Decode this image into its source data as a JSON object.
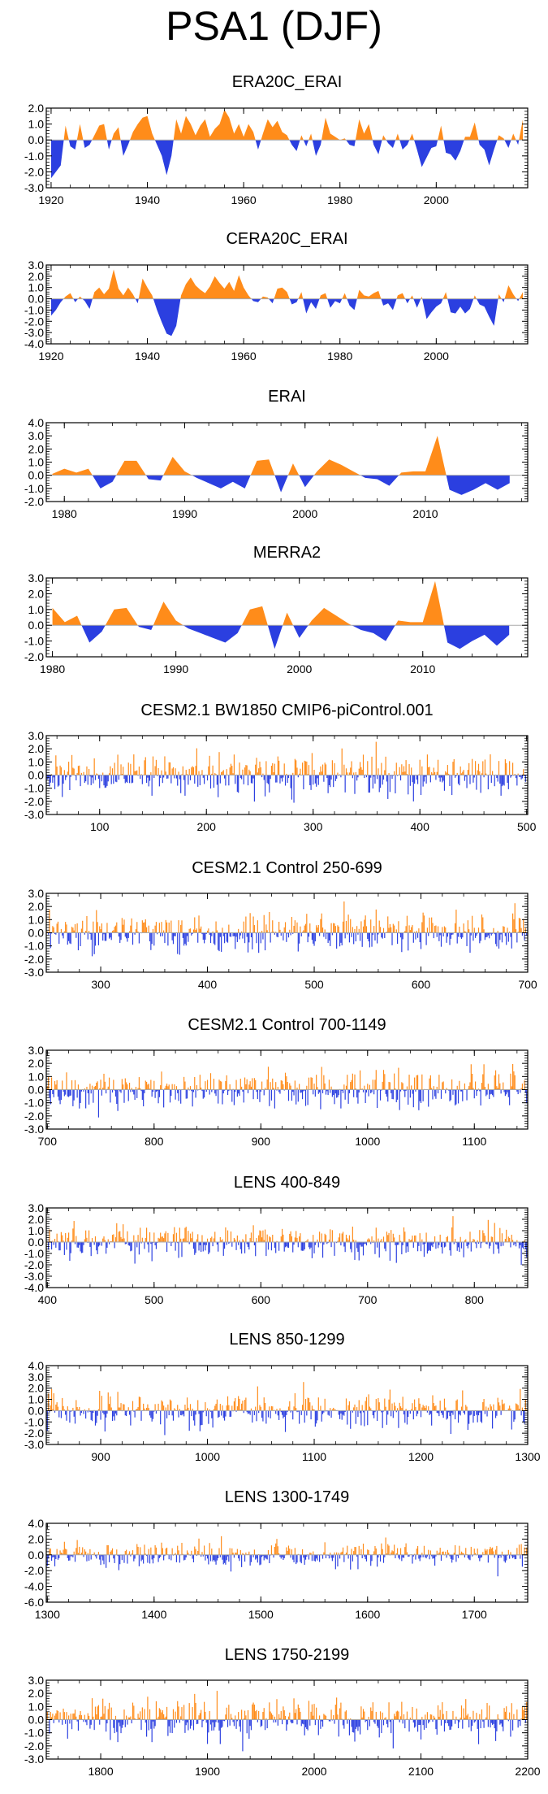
{
  "title": "PSA1 (DJF)",
  "colors": {
    "positive": "#FF8C1A",
    "negative": "#2B3FE0",
    "frame": "#000000",
    "zero": "#AAAAAA"
  },
  "chart_data": [
    {
      "type": "area",
      "title": "ERA20C_ERAI",
      "xlim": [
        1919,
        2019
      ],
      "ylim": [
        -3.0,
        2.0
      ],
      "yticks": [
        "2.0",
        "1.0",
        "0.0",
        "-1.0",
        "-2.0",
        "-3.0"
      ],
      "xticks": [
        "1920",
        "1940",
        "1960",
        "1980",
        "2000"
      ],
      "x": [
        1920,
        1921,
        1922,
        1923,
        1924,
        1925,
        1926,
        1927,
        1928,
        1929,
        1930,
        1931,
        1932,
        1933,
        1934,
        1935,
        1936,
        1937,
        1938,
        1939,
        1940,
        1941,
        1942,
        1943,
        1944,
        1945,
        1946,
        1947,
        1948,
        1949,
        1950,
        1951,
        1952,
        1953,
        1954,
        1955,
        1956,
        1957,
        1958,
        1959,
        1960,
        1961,
        1962,
        1963,
        1964,
        1965,
        1966,
        1967,
        1968,
        1969,
        1970,
        1971,
        1972,
        1973,
        1974,
        1975,
        1976,
        1977,
        1978,
        1979,
        1980,
        1981,
        1982,
        1983,
        1984,
        1985,
        1986,
        1987,
        1988,
        1989,
        1990,
        1991,
        1992,
        1993,
        1994,
        1995,
        1996,
        1997,
        1998,
        1999,
        2000,
        2001,
        2002,
        2003,
        2004,
        2005,
        2006,
        2007,
        2008,
        2009,
        2010,
        2011,
        2012,
        2013,
        2014,
        2015,
        2016,
        2017,
        2018
      ],
      "values": [
        -2.4,
        -2.0,
        -1.6,
        0.9,
        -0.4,
        -0.6,
        1.0,
        -0.5,
        -0.3,
        0.3,
        0.9,
        1.0,
        -0.6,
        0.4,
        0.8,
        -1.0,
        -0.3,
        0.5,
        1.0,
        1.4,
        1.5,
        0.4,
        -0.3,
        -1.0,
        -2.2,
        -1.0,
        1.3,
        0.4,
        1.5,
        1.0,
        0.3,
        0.9,
        1.3,
        0.2,
        0.7,
        1.0,
        1.9,
        1.4,
        0.4,
        1.0,
        0.2,
        1.0,
        0.5,
        -0.6,
        0.4,
        1.3,
        0.8,
        1.2,
        0.5,
        0.3,
        -0.3,
        -0.7,
        0.3,
        -0.4,
        0.4,
        -1.0,
        -0.3,
        1.4,
        0.4,
        0.2,
        0.0,
        0.1,
        -0.3,
        -0.4,
        1.3,
        0.4,
        1.0,
        -0.3,
        -0.9,
        0.3,
        -0.2,
        -0.5,
        0.4,
        -0.6,
        -0.3,
        0.4,
        -0.6,
        -1.7,
        -1.1,
        -0.5,
        -0.4,
        0.9,
        -0.8,
        -0.9,
        -1.3,
        -0.7,
        0.2,
        0.2,
        1.1,
        -0.3,
        -0.6,
        -1.6,
        -0.6,
        0.3,
        0.1,
        -0.5,
        0.4,
        -0.3,
        1.3
      ]
    },
    {
      "type": "area",
      "title": "CERA20C_ERAI",
      "xlim": [
        1919,
        2019
      ],
      "ylim": [
        -4.0,
        3.0
      ],
      "yticks": [
        "3.0",
        "2.0",
        "1.0",
        "0.0",
        "-1.0",
        "-2.0",
        "-3.0",
        "-4.0"
      ],
      "xticks": [
        "1920",
        "1940",
        "1960",
        "1980",
        "2000"
      ],
      "x": [
        1920,
        1921,
        1922,
        1923,
        1924,
        1925,
        1926,
        1927,
        1928,
        1929,
        1930,
        1931,
        1932,
        1933,
        1934,
        1935,
        1936,
        1937,
        1938,
        1939,
        1940,
        1941,
        1942,
        1943,
        1944,
        1945,
        1946,
        1947,
        1948,
        1949,
        1950,
        1951,
        1952,
        1953,
        1954,
        1955,
        1956,
        1957,
        1958,
        1959,
        1960,
        1961,
        1962,
        1963,
        1964,
        1965,
        1966,
        1967,
        1968,
        1969,
        1970,
        1971,
        1972,
        1973,
        1974,
        1975,
        1976,
        1977,
        1978,
        1979,
        1980,
        1981,
        1982,
        1983,
        1984,
        1985,
        1986,
        1987,
        1988,
        1989,
        1990,
        1991,
        1992,
        1993,
        1994,
        1995,
        1996,
        1997,
        1998,
        1999,
        2000,
        2001,
        2002,
        2003,
        2004,
        2005,
        2006,
        2007,
        2008,
        2009,
        2010,
        2011,
        2012,
        2013,
        2014,
        2015,
        2016,
        2017,
        2018
      ],
      "values": [
        -1.5,
        -1.0,
        -0.3,
        0.2,
        0.5,
        -0.3,
        0.2,
        -0.2,
        -0.9,
        0.6,
        1.0,
        0.4,
        0.9,
        2.6,
        0.9,
        0.3,
        1.0,
        0.4,
        -0.4,
        1.8,
        1.0,
        0.3,
        -1.0,
        -2.1,
        -3.1,
        -3.3,
        -2.4,
        0.3,
        1.3,
        1.9,
        1.2,
        0.8,
        0.5,
        1.1,
        2.0,
        1.4,
        0.9,
        1.5,
        0.7,
        2.1,
        1.0,
        0.3,
        -0.2,
        -0.3,
        0.2,
        0.1,
        -0.4,
        0.9,
        1.0,
        0.6,
        -0.5,
        -0.3,
        0.6,
        -1.3,
        -0.3,
        -0.9,
        0.3,
        0.5,
        -0.8,
        -0.2,
        -0.4,
        0.5,
        -0.6,
        -1.0,
        0.8,
        0.3,
        0.2,
        0.5,
        0.7,
        -0.6,
        -0.4,
        -1.0,
        0.3,
        0.5,
        -0.4,
        0.3,
        -0.8,
        0.2,
        -1.8,
        -1.2,
        -0.7,
        -0.4,
        0.6,
        -1.2,
        -1.3,
        -0.7,
        -1.3,
        -0.9,
        0.3,
        -0.5,
        -0.7,
        -1.6,
        -2.4,
        0.4,
        -0.3,
        1.2,
        0.4,
        -0.2,
        0.6
      ]
    },
    {
      "type": "area",
      "title": "ERAI",
      "xlim": [
        1978.5,
        2018.5
      ],
      "ylim": [
        -2.0,
        4.0
      ],
      "yticks": [
        "4.0",
        "3.0",
        "2.0",
        "1.0",
        "0.0",
        "-1.0",
        "-2.0"
      ],
      "xticks": [
        "1980",
        "1990",
        "2000",
        "2010"
      ],
      "x": [
        1979,
        1980,
        1981,
        1982,
        1983,
        1984,
        1985,
        1986,
        1987,
        1988,
        1989,
        1990,
        1991,
        1992,
        1993,
        1994,
        1995,
        1996,
        1997,
        1998,
        1999,
        2000,
        2001,
        2002,
        2003,
        2004,
        2005,
        2006,
        2007,
        2008,
        2009,
        2010,
        2011,
        2012,
        2013,
        2014,
        2015,
        2016,
        2017
      ],
      "values": [
        0.1,
        0.5,
        0.2,
        0.5,
        -1.0,
        -0.5,
        1.1,
        1.1,
        -0.3,
        -0.4,
        1.4,
        0.3,
        -0.2,
        -0.6,
        -1.0,
        -0.5,
        -1.0,
        1.1,
        1.2,
        -1.3,
        0.9,
        -0.9,
        0.3,
        1.2,
        0.8,
        0.3,
        -0.2,
        -0.3,
        -0.8,
        0.2,
        0.3,
        0.3,
        3.0,
        -1.1,
        -1.5,
        -1.1,
        -0.6,
        -1.1,
        -0.6
      ]
    },
    {
      "type": "area",
      "title": "MERRA2",
      "xlim": [
        1979.5,
        2018.5
      ],
      "ylim": [
        -2.0,
        3.0
      ],
      "yticks": [
        "3.0",
        "2.0",
        "1.0",
        "0.0",
        "-1.0",
        "-2.0"
      ],
      "xticks": [
        "1980",
        "1990",
        "2000",
        "2010"
      ],
      "x": [
        1980,
        1981,
        1982,
        1983,
        1984,
        1985,
        1986,
        1987,
        1988,
        1989,
        1990,
        1991,
        1992,
        1993,
        1994,
        1995,
        1996,
        1997,
        1998,
        1999,
        2000,
        2001,
        2002,
        2003,
        2004,
        2005,
        2006,
        2007,
        2008,
        2009,
        2010,
        2011,
        2012,
        2013,
        2014,
        2015,
        2016,
        2017
      ],
      "values": [
        1.1,
        0.2,
        0.6,
        -1.1,
        -0.4,
        1.0,
        1.1,
        -0.1,
        -0.3,
        1.5,
        0.3,
        -0.2,
        -0.5,
        -0.8,
        -1.1,
        -0.5,
        1.0,
        1.2,
        -1.5,
        0.8,
        -0.8,
        0.3,
        1.1,
        0.6,
        0.1,
        -0.3,
        -0.5,
        -1.0,
        0.3,
        0.2,
        0.2,
        2.8,
        -1.1,
        -1.5,
        -1.0,
        -0.6,
        -1.3,
        -0.6
      ]
    },
    {
      "type": "bar",
      "title": "CESM2.1 BW1850 CMIP6-piControl.001",
      "xlim": [
        50,
        501
      ],
      "ylim": [
        -3.0,
        3.0
      ],
      "yticks": [
        "3.0",
        "2.0",
        "1.0",
        "0.0",
        "-1.0",
        "-2.0",
        "-3.0"
      ],
      "xticks": [
        "100",
        "200",
        "300",
        "400",
        "500"
      ],
      "n_years": 450,
      "start_year": 51
    },
    {
      "type": "bar",
      "title": "CESM2.1 Control 250-699",
      "xlim": [
        249,
        700
      ],
      "ylim": [
        -3.0,
        3.0
      ],
      "yticks": [
        "3.0",
        "2.0",
        "1.0",
        "0.0",
        "-1.0",
        "-2.0",
        "-3.0"
      ],
      "xticks": [
        "300",
        "400",
        "500",
        "600",
        "700"
      ],
      "n_years": 450,
      "start_year": 250
    },
    {
      "type": "bar",
      "title": "CESM2.1 Control 700-1149",
      "xlim": [
        699,
        1150
      ],
      "ylim": [
        -3.0,
        3.0
      ],
      "yticks": [
        "3.0",
        "2.0",
        "1.0",
        "0.0",
        "-1.0",
        "-2.0",
        "-3.0"
      ],
      "xticks": [
        "700",
        "800",
        "900",
        "1000",
        "1100"
      ],
      "n_years": 450,
      "start_year": 700
    },
    {
      "type": "bar",
      "title": "LENS 400-849",
      "xlim": [
        399,
        850
      ],
      "ylim": [
        -4.0,
        3.0
      ],
      "yticks": [
        "3.0",
        "2.0",
        "1.0",
        "0.0",
        "-1.0",
        "-2.0",
        "-3.0",
        "-4.0"
      ],
      "xticks": [
        "400",
        "500",
        "600",
        "700",
        "800"
      ],
      "n_years": 450,
      "start_year": 400
    },
    {
      "type": "bar",
      "title": "LENS 850-1299",
      "xlim": [
        849,
        1300
      ],
      "ylim": [
        -3.0,
        4.0
      ],
      "yticks": [
        "4.0",
        "3.0",
        "2.0",
        "1.0",
        "0.0",
        "-1.0",
        "-2.0",
        "-3.0"
      ],
      "xticks": [
        "900",
        "1000",
        "1100",
        "1200",
        "1300"
      ],
      "n_years": 450,
      "start_year": 850
    },
    {
      "type": "bar",
      "title": "LENS 1300-1749",
      "xlim": [
        1299,
        1750
      ],
      "ylim": [
        -6.0,
        4.0
      ],
      "yticks": [
        "4.0",
        "2.0",
        "0.0",
        "-2.0",
        "-4.0",
        "-6.0"
      ],
      "xticks": [
        "1300",
        "1400",
        "1500",
        "1600",
        "1700"
      ],
      "n_years": 450,
      "start_year": 1300
    },
    {
      "type": "bar",
      "title": "LENS 1750-2199",
      "xlim": [
        1749,
        2200
      ],
      "ylim": [
        -3.0,
        3.0
      ],
      "yticks": [
        "3.0",
        "2.0",
        "1.0",
        "0.0",
        "-1.0",
        "-2.0",
        "-3.0"
      ],
      "xticks": [
        "1800",
        "1900",
        "2000",
        "2100",
        "2200"
      ],
      "n_years": 450,
      "start_year": 1750
    }
  ]
}
